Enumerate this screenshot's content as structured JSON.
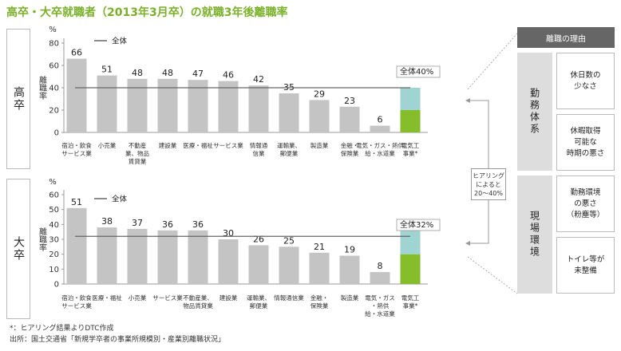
{
  "title": "高卒・大卒就職者（2013年3月卒）の就職3年後離職率",
  "colors": {
    "bar": "#c4c4c4",
    "line": "#666666",
    "green": "#86bd2b",
    "teal": "#9fd4d2",
    "title": "#7ab02a"
  },
  "chart_data": [
    {
      "type": "bar",
      "panel_label": "高卒",
      "unit": "%",
      "ylabel": "離職率",
      "ylim": [
        0,
        80
      ],
      "yticks": [
        0,
        20,
        40,
        60,
        80
      ],
      "legend": "全体",
      "average_label": "全体40%",
      "average": 40,
      "categories": [
        "宿泊・飲食\nサービス業",
        "小売業",
        "不動産\n業、物品\n賃貸業",
        "建設業",
        "医療・福祉",
        "サービス業",
        "情報通\n信業",
        "運輸業、\n郵便業",
        "製造業",
        "金融・\n保険業",
        "電気・ガス・熱供\n給・水道業",
        "電気工\n事業*"
      ],
      "values": [
        66,
        51,
        48,
        48,
        47,
        46,
        42,
        35,
        29,
        23,
        6,
        null
      ],
      "value_labels": [
        "66",
        "51",
        "48",
        "48",
        "47",
        "46",
        "42",
        "35",
        "29",
        "23",
        "6",
        ""
      ],
      "range": [
        20,
        40
      ]
    },
    {
      "type": "bar",
      "panel_label": "大卒",
      "unit": "%",
      "ylabel": "離職率",
      "ylim": [
        0,
        60
      ],
      "yticks": [
        0,
        10,
        20,
        30,
        40,
        50,
        60
      ],
      "legend": "全体",
      "average_label": "全体32%",
      "average": 32,
      "categories": [
        "宿泊・飲食\nサービス業",
        "医療・福祉",
        "小売業",
        "サービス業",
        "不動産業、\n物品賃貸業",
        "建設業",
        "運輸業、\n郵便業",
        "情報通信業",
        "金融・\n保険業",
        "製造業",
        "電気・ガス\n・熱供\n給・水道業",
        "電気工\n事業*"
      ],
      "values": [
        51,
        38,
        37,
        36,
        36,
        30,
        26,
        25,
        21,
        19,
        8,
        null
      ],
      "value_labels": [
        "51",
        "38",
        "37",
        "36",
        "36",
        "30",
        "26",
        "25",
        "21",
        "19",
        "8",
        ""
      ],
      "range": [
        20,
        40
      ]
    }
  ],
  "hearing_note": "ヒアリング\nによると\n20～40%",
  "reasons": {
    "header": "離職の理由",
    "groups": [
      {
        "category": "勤務体系",
        "items": [
          "休日数の\n少なさ",
          "休暇取得\n可能な\n時期の悪さ"
        ]
      },
      {
        "category": "現場環境",
        "items": [
          "勤務環境\nの悪さ\n（粉塵等）",
          "トイレ等が\n未整備"
        ]
      }
    ]
  },
  "footnotes": [
    "*：ヒアリング結果よりDTC作成",
    "出所：国土交通省「新規学卒者の事業所規模別・産業別離職状況」"
  ]
}
